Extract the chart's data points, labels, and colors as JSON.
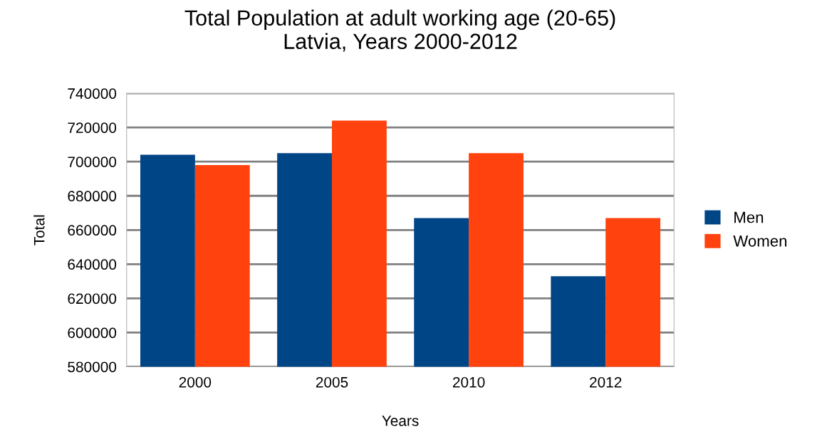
{
  "chart_data": {
    "type": "bar",
    "title": "Total Population at adult working age (20-65)\nLatvia, Years 2000-2012",
    "xlabel": "Years",
    "ylabel": "Total",
    "categories": [
      "2000",
      "2005",
      "2010",
      "2012"
    ],
    "series": [
      {
        "name": "Men",
        "color": "#004586",
        "values": [
          704000,
          705000,
          667000,
          633000
        ]
      },
      {
        "name": "Women",
        "color": "#ff420e",
        "values": [
          698000,
          724000,
          705000,
          667000
        ]
      }
    ],
    "ylim": [
      580000,
      740000
    ],
    "yticks": [
      580000,
      600000,
      620000,
      640000,
      660000,
      680000,
      700000,
      720000,
      740000
    ],
    "grid": "y",
    "legend": "right"
  }
}
